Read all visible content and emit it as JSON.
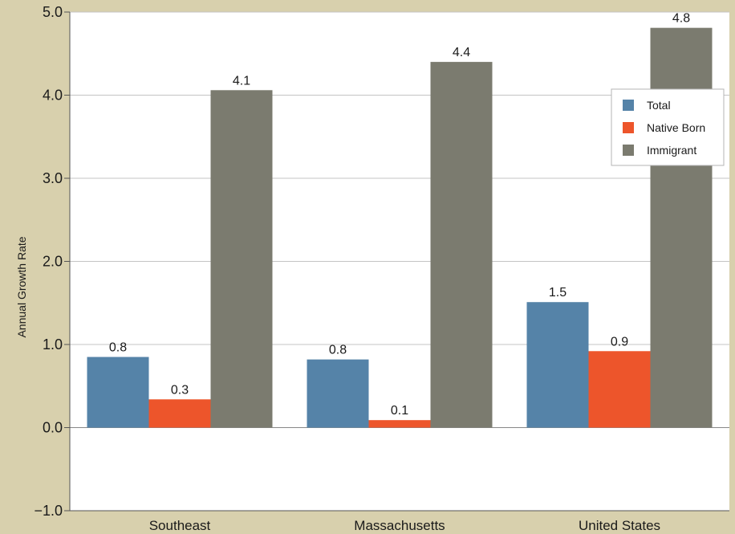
{
  "chart_data": {
    "type": "bar",
    "categories": [
      "Southeast",
      "Massachusetts",
      "United States"
    ],
    "series": [
      {
        "name": "Total",
        "color": "#5583a8",
        "values": [
          0.85,
          0.82,
          1.51
        ],
        "labels": [
          "0.8",
          "0.8",
          "1.5"
        ]
      },
      {
        "name": "Native Born",
        "color": "#ed552b",
        "values": [
          0.34,
          0.09,
          0.92
        ],
        "labels": [
          "0.3",
          "0.1",
          "0.9"
        ]
      },
      {
        "name": "Immigrant",
        "color": "#7b7b6f",
        "values": [
          4.06,
          4.4,
          4.81
        ],
        "labels": [
          "4.1",
          "4.4",
          "4.8"
        ]
      }
    ],
    "ylabel": "Annual Growth Rate",
    "ylim": [
      -1.0,
      5.0
    ],
    "yticks": [
      "−1.0",
      "0.0",
      "1.0",
      "2.0",
      "3.0",
      "4.0",
      "5.0"
    ],
    "grid": true,
    "legend": "top-right"
  }
}
